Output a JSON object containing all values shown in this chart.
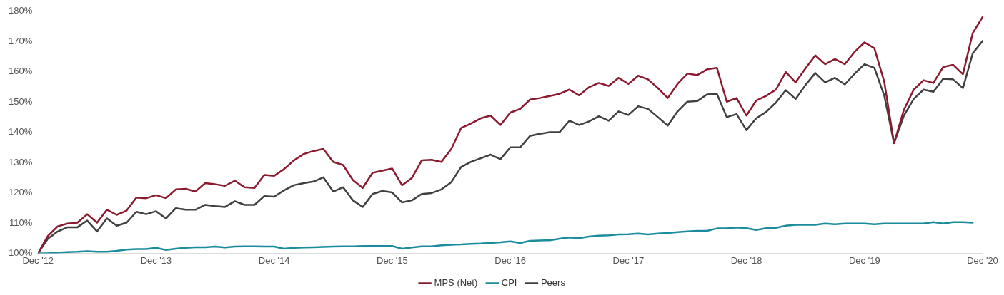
{
  "chart_data": {
    "type": "line",
    "x": [
      "2012-12",
      "2013-01",
      "2013-02",
      "2013-03",
      "2013-04",
      "2013-05",
      "2013-06",
      "2013-07",
      "2013-08",
      "2013-09",
      "2013-10",
      "2013-11",
      "2013-12",
      "2014-01",
      "2014-02",
      "2014-03",
      "2014-04",
      "2014-05",
      "2014-06",
      "2014-07",
      "2014-08",
      "2014-09",
      "2014-10",
      "2014-11",
      "2014-12",
      "2015-01",
      "2015-02",
      "2015-03",
      "2015-04",
      "2015-05",
      "2015-06",
      "2015-07",
      "2015-08",
      "2015-09",
      "2015-10",
      "2015-11",
      "2015-12",
      "2016-01",
      "2016-02",
      "2016-03",
      "2016-04",
      "2016-05",
      "2016-06",
      "2016-07",
      "2016-08",
      "2016-09",
      "2016-10",
      "2016-11",
      "2016-12",
      "2017-01",
      "2017-02",
      "2017-03",
      "2017-04",
      "2017-05",
      "2017-06",
      "2017-07",
      "2017-08",
      "2017-09",
      "2017-10",
      "2017-11",
      "2017-12",
      "2018-01",
      "2018-02",
      "2018-03",
      "2018-04",
      "2018-05",
      "2018-06",
      "2018-07",
      "2018-08",
      "2018-09",
      "2018-10",
      "2018-11",
      "2018-12",
      "2019-01",
      "2019-02",
      "2019-03",
      "2019-04",
      "2019-05",
      "2019-06",
      "2019-07",
      "2019-08",
      "2019-09",
      "2019-10",
      "2019-11",
      "2019-12",
      "2020-01",
      "2020-02",
      "2020-03",
      "2020-04",
      "2020-05",
      "2020-06",
      "2020-07",
      "2020-08",
      "2020-09",
      "2020-10",
      "2020-11",
      "2020-12"
    ],
    "series": [
      {
        "name": "MPS (Net)",
        "color": "#8b1a2e",
        "values": [
          100,
          105.7,
          108.9,
          109.8,
          110.1,
          112.9,
          110.1,
          114.4,
          112.7,
          114.1,
          118.4,
          118.2,
          119.2,
          118.2,
          121.1,
          121.3,
          120.4,
          123.2,
          122.8,
          122.3,
          124.0,
          121.8,
          121.6,
          125.9,
          125.6,
          127.8,
          130.7,
          132.8,
          133.8,
          134.5,
          130.2,
          129.2,
          124.2,
          121.6,
          126.6,
          127.3,
          128.0,
          122.5,
          124.9,
          130.7,
          130.9,
          130.2,
          134.5,
          141.4,
          142.9,
          144.6,
          145.5,
          142.4,
          146.5,
          147.7,
          150.8,
          151.3,
          152.0,
          152.7,
          154.1,
          152.2,
          154.9,
          156.3,
          155.3,
          158.0,
          156.0,
          158.7,
          157.5,
          154.6,
          151.3,
          156.0,
          159.4,
          158.9,
          160.8,
          161.3,
          150.1,
          151.3,
          145.5,
          150.5,
          152.0,
          154.1,
          159.9,
          156.5,
          161.1,
          165.4,
          162.5,
          164.2,
          162.5,
          166.6,
          169.7,
          167.8,
          156.8,
          136.4,
          147.4,
          154.1,
          157.2,
          156.3,
          161.6,
          162.3,
          159.2,
          172.8,
          178.1
        ]
      },
      {
        "name": "CPI",
        "color": "#1a8c9c",
        "values": [
          100,
          100.0,
          100.2,
          100.4,
          100.5,
          100.7,
          100.5,
          100.5,
          100.8,
          101.2,
          101.4,
          101.4,
          101.8,
          101.1,
          101.5,
          101.8,
          102.0,
          102.0,
          102.2,
          101.9,
          102.2,
          102.3,
          102.3,
          102.2,
          102.2,
          101.5,
          101.8,
          101.9,
          102.0,
          102.1,
          102.2,
          102.3,
          102.3,
          102.4,
          102.4,
          102.4,
          102.4,
          101.5,
          101.9,
          102.3,
          102.3,
          102.6,
          102.8,
          102.9,
          103.1,
          103.2,
          103.4,
          103.6,
          103.9,
          103.4,
          104.1,
          104.2,
          104.3,
          104.8,
          105.2,
          105.0,
          105.5,
          105.8,
          105.9,
          106.2,
          106.3,
          106.5,
          106.2,
          106.5,
          106.7,
          107.0,
          107.2,
          107.4,
          107.4,
          108.2,
          108.2,
          108.5,
          108.3,
          107.7,
          108.3,
          108.4,
          109.1,
          109.4,
          109.4,
          109.4,
          109.8,
          109.6,
          109.8,
          109.8,
          109.8,
          109.6,
          109.8,
          109.8,
          109.8,
          109.8,
          109.8,
          110.3,
          109.8,
          110.3,
          110.3,
          110.1,
          null
        ]
      },
      {
        "name": "Peers",
        "color": "#404040",
        "values": [
          100,
          104.8,
          107.2,
          108.6,
          108.6,
          110.8,
          107.2,
          111.5,
          109.1,
          110.1,
          113.7,
          112.9,
          113.9,
          111.5,
          114.9,
          114.4,
          114.4,
          116.0,
          115.6,
          115.3,
          117.2,
          116.0,
          116.0,
          118.9,
          118.7,
          120.8,
          122.5,
          123.2,
          123.7,
          125.1,
          120.4,
          121.8,
          117.5,
          115.3,
          119.6,
          120.6,
          120.1,
          116.8,
          117.5,
          119.6,
          119.9,
          121.1,
          123.5,
          128.5,
          130.2,
          131.4,
          132.6,
          131.1,
          135.0,
          135.0,
          138.8,
          139.5,
          140.0,
          140.0,
          143.8,
          142.4,
          143.6,
          145.3,
          143.8,
          146.9,
          145.7,
          148.6,
          147.7,
          145.0,
          142.2,
          146.9,
          150.1,
          150.3,
          152.5,
          152.7,
          145.0,
          146.0,
          140.7,
          144.6,
          146.7,
          149.8,
          153.9,
          151.0,
          155.6,
          159.6,
          156.5,
          158.0,
          155.8,
          159.4,
          162.5,
          161.3,
          152.2,
          136.4,
          145.5,
          151.0,
          154.1,
          153.4,
          157.7,
          157.5,
          154.6,
          166.1,
          170.2
        ]
      }
    ],
    "xlim": [
      "2012-12",
      "2020-12"
    ],
    "xticks": [
      {
        "value": "2012-12",
        "label": "Dec '12"
      },
      {
        "value": "2013-12",
        "label": "Dec '13"
      },
      {
        "value": "2014-12",
        "label": "Dec '14"
      },
      {
        "value": "2015-12",
        "label": "Dec '15"
      },
      {
        "value": "2016-12",
        "label": "Dec '16"
      },
      {
        "value": "2017-12",
        "label": "Dec '17"
      },
      {
        "value": "2018-12",
        "label": "Dec '18"
      },
      {
        "value": "2019-12",
        "label": "Dec '19"
      },
      {
        "value": "2020-12",
        "label": "Dec '20"
      }
    ],
    "ylim": [
      100,
      180
    ],
    "yticks": [
      {
        "value": 100,
        "label": "100%"
      },
      {
        "value": 110,
        "label": "110%"
      },
      {
        "value": 120,
        "label": "120%"
      },
      {
        "value": 130,
        "label": "130%"
      },
      {
        "value": 140,
        "label": "140%"
      },
      {
        "value": 150,
        "label": "150%"
      },
      {
        "value": 160,
        "label": "160%"
      },
      {
        "value": 170,
        "label": "170%"
      },
      {
        "value": 180,
        "label": "180%"
      }
    ],
    "grid": false,
    "legend": "bottom",
    "marker": "none",
    "line_style": "solid"
  }
}
